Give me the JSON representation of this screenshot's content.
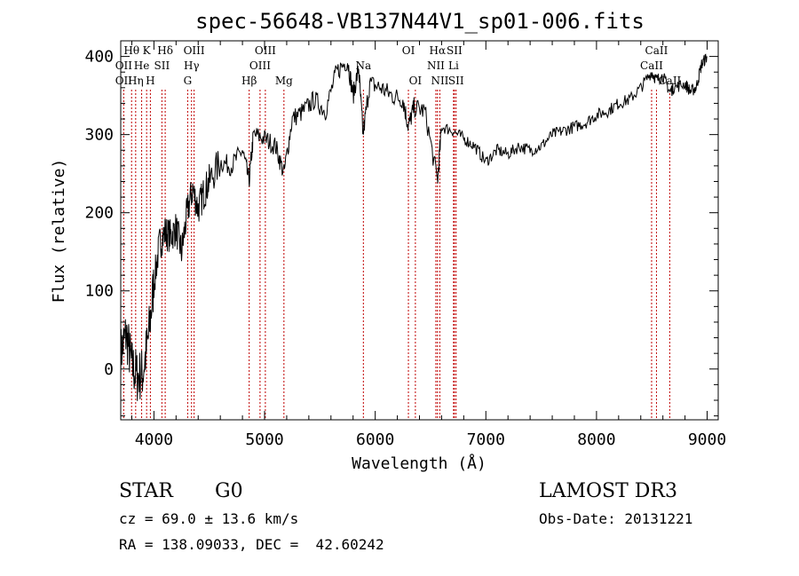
{
  "title": "spec-56648-VB137N44V1_sp01-006.fits",
  "info": {
    "object_class": "STAR",
    "subclass": "G0",
    "redshift": "cz = 69.0 ± 13.6 km/s",
    "coords": "RA = 138.09033, DEC =  42.60242",
    "survey": "LAMOST DR3",
    "obs_date": "Obs-Date: 20131221"
  },
  "colors": {
    "spectrum": "#000000",
    "line_markers": "#c00000",
    "axes": "#000000"
  },
  "chart_data": {
    "type": "line",
    "title": "spec-56648-VB137N44V1_sp01-006.fits",
    "xlabel": "Wavelength (Å)",
    "ylabel": "Flux (relative)",
    "xlim": [
      3700,
      9100
    ],
    "ylim": [
      -65,
      420
    ],
    "xticks": [
      4000,
      5000,
      6000,
      7000,
      8000,
      9000
    ],
    "yticks": [
      0,
      100,
      200,
      300,
      400
    ],
    "grid": false,
    "series": [
      {
        "x": [
          3700,
          3750,
          3800,
          3850,
          3900,
          3950,
          4000,
          4050,
          4100,
          4150,
          4200,
          4250,
          4300,
          4350,
          4400,
          4450,
          4500,
          4600,
          4700,
          4800,
          4860,
          4900,
          5000,
          5100,
          5175,
          5250,
          5350,
          5450,
          5550,
          5650,
          5750,
          5800,
          5850,
          5890,
          5950,
          6050,
          6150,
          6250,
          6300,
          6350,
          6450,
          6563,
          6600,
          6700,
          6800,
          6900,
          7000,
          7100,
          7200,
          7300,
          7400,
          7500,
          7600,
          7700,
          7800,
          7900,
          8000,
          8100,
          8200,
          8300,
          8400,
          8498,
          8542,
          8600,
          8662,
          8700,
          8800,
          8850,
          8900,
          8950,
          9000
        ],
        "y": [
          20,
          45,
          5,
          -10,
          -5,
          40,
          110,
          160,
          175,
          170,
          180,
          150,
          200,
          230,
          205,
          225,
          240,
          265,
          260,
          280,
          240,
          300,
          295,
          285,
          250,
          320,
          330,
          345,
          330,
          380,
          395,
          350,
          385,
          300,
          365,
          360,
          350,
          345,
          310,
          335,
          330,
          240,
          310,
          305,
          295,
          285,
          265,
          280,
          275,
          285,
          280,
          285,
          300,
          305,
          310,
          315,
          325,
          330,
          340,
          345,
          360,
          380,
          370,
          375,
          355,
          360,
          365,
          355,
          360,
          390,
          400
        ]
      }
    ],
    "line_labels": [
      {
        "label": "Hθ",
        "x": 3798,
        "row": 1
      },
      {
        "label": "OII",
        "x": 3727,
        "row": 2
      },
      {
        "label": "OII",
        "x": 3727,
        "row": 3
      },
      {
        "label": "He",
        "x": 3889,
        "row": 2
      },
      {
        "label": "Hη",
        "x": 3835,
        "row": 3
      },
      {
        "label": "K",
        "x": 3934,
        "row": 1
      },
      {
        "label": "SII",
        "x": 4072,
        "row": 2
      },
      {
        "label": "H",
        "x": 3968,
        "row": 3
      },
      {
        "label": "Hδ",
        "x": 4102,
        "row": 1
      },
      {
        "label": "OIII",
        "x": 4363,
        "row": 1
      },
      {
        "label": "Hγ",
        "x": 4340,
        "row": 2
      },
      {
        "label": "G",
        "x": 4305,
        "row": 3
      },
      {
        "label": "OIII",
        "x": 5007,
        "row": 1
      },
      {
        "label": "OIII",
        "x": 4959,
        "row": 2
      },
      {
        "label": "Hβ",
        "x": 4861,
        "row": 3
      },
      {
        "label": "Mg",
        "x": 5175,
        "row": 3
      },
      {
        "label": "Na",
        "x": 5893,
        "row": 2
      },
      {
        "label": "OI",
        "x": 6300,
        "row": 1
      },
      {
        "label": "OI",
        "x": 6363,
        "row": 3
      },
      {
        "label": "Hα",
        "x": 6563,
        "row": 1
      },
      {
        "label": "SII",
        "x": 6716,
        "row": 1
      },
      {
        "label": "NII",
        "x": 6548,
        "row": 2
      },
      {
        "label": "Li",
        "x": 6708,
        "row": 2
      },
      {
        "label": "NII",
        "x": 6584,
        "row": 3
      },
      {
        "label": "SII",
        "x": 6731,
        "row": 3
      },
      {
        "label": "CaII",
        "x": 8542,
        "row": 1
      },
      {
        "label": "CaII",
        "x": 8498,
        "row": 2
      },
      {
        "label": "CaII",
        "x": 8662,
        "row": 3
      }
    ]
  }
}
